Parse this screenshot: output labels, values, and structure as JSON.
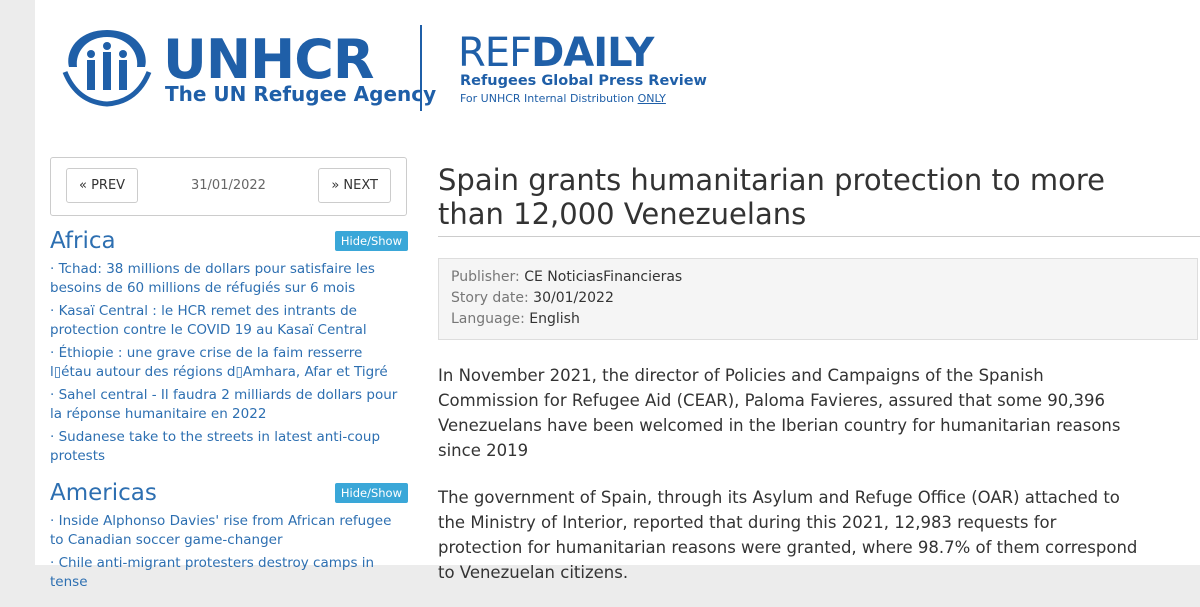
{
  "header": {
    "logo_name": "UNHCR",
    "logo_tagline": "The UN Refugee Agency",
    "ref_light": "REF",
    "ref_bold": "DAILY",
    "ref_subtitle": "Refugees Global Press Review",
    "distribution": "For UNHCR Internal Distribution",
    "distribution_link": "ONLY"
  },
  "nav": {
    "prev": "« PREV",
    "date": "31/01/2022",
    "next": "» NEXT"
  },
  "sections": [
    {
      "title": "Africa",
      "toggle": "Hide/Show",
      "items": [
        "· Tchad: 38 millions de dollars pour satisfaire les besoins de 60 millions de réfugiés sur 6 mois",
        "· Kasaï Central : le HCR remet des intrants de protection contre le COVID 19 au Kasaï Central",
        "· Éthiopie : une grave crise de la faim resserre l▯étau autour des régions d▯Amhara, Afar et Tigré",
        "· Sahel central - Il faudra 2 milliards de dollars pour la réponse humanitaire en 2022",
        "· Sudanese take to the streets in latest anti-coup protests"
      ]
    },
    {
      "title": "Americas",
      "toggle": "Hide/Show",
      "items": [
        "· Inside Alphonso Davies' rise from African refugee to Canadian soccer game-changer",
        "· Chile anti-migrant protesters destroy camps in tense"
      ]
    }
  ],
  "article": {
    "title": "Spain grants humanitarian protection to more than 12,000 Venezuelans",
    "meta": [
      {
        "label": "Publisher:",
        "value": "CE NoticiasFinancieras"
      },
      {
        "label": "Story date:",
        "value": "30/01/2022"
      },
      {
        "label": "Language:",
        "value": "English"
      }
    ],
    "paragraphs": [
      "In November 2021, the director of Policies and Campaigns of the Spanish Commission for Refugee Aid (CEAR), Paloma Favieres, assured that some 90,396 Venezuelans have been welcomed in the Iberian country for humanitarian reasons since 2019",
      "The government of Spain, through its Asylum and Refuge Office (OAR) attached to the Ministry of Interior, reported that during this 2021, 12,983 requests for protection for humanitarian reasons were granted, where 98.7% of them correspond to Venezuelan citizens."
    ]
  }
}
